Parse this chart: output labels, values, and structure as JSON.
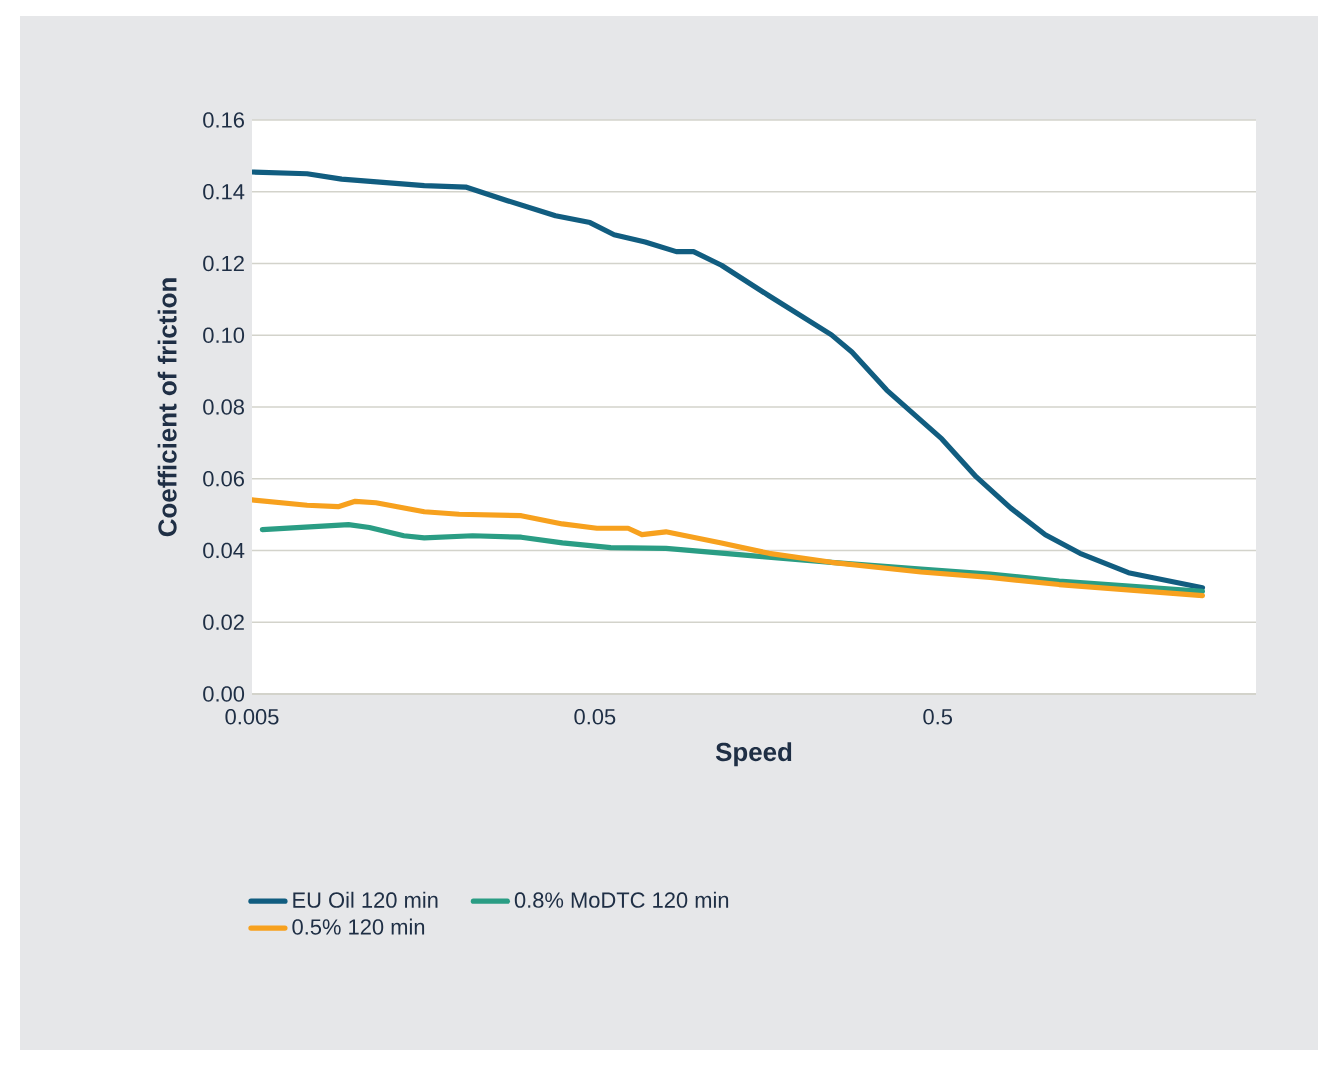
{
  "chart_data": {
    "type": "line",
    "xlabel": "Speed",
    "ylabel": "Coefficient of friction",
    "log": "x",
    "grid": "y",
    "legend": "bottom",
    "marker": "none",
    "line_style": "solid",
    "xlim": [
      0.005,
      4.24
    ],
    "xticks": [
      0.005,
      0.05,
      0.5
    ],
    "ylim": [
      0,
      0.16
    ],
    "yticks": [
      {
        "value": 0,
        "label": "0.00"
      },
      0.02,
      0.04,
      0.06,
      0.08,
      {
        "value": 0.1,
        "label": "0.10"
      },
      0.12,
      0.14,
      0.16
    ],
    "series": [
      {
        "name": "EU Oil 120 min",
        "color": "#115d80",
        "x": [
          0.005,
          0.00724,
          0.00913,
          0.0159,
          0.021,
          0.0278,
          0.0384,
          0.0484,
          0.0569,
          0.0701,
          0.0864,
          0.097,
          0.117,
          0.161,
          0.245,
          0.281,
          0.355,
          0.514,
          0.648,
          0.817,
          1.03,
          1.3,
          1.8,
          2.96
        ],
        "values": [
          0.1455,
          0.145,
          0.1435,
          0.1417,
          0.1413,
          0.1375,
          0.1333,
          0.1314,
          0.128,
          0.126,
          0.1233,
          0.1233,
          0.1195,
          0.111,
          0.1001,
          0.0953,
          0.0847,
          0.0711,
          0.0605,
          0.0518,
          0.0444,
          0.0392,
          0.0338,
          0.0296
        ]
      },
      {
        "name": "0.8% MoDTC 120 min",
        "color": "#2a9d84",
        "x": [
          0.00536,
          0.00956,
          0.011,
          0.01386,
          0.0159,
          0.022,
          0.0305,
          0.0402,
          0.0556,
          0.0806,
          0.154,
          0.245,
          0.447,
          0.711,
          1.13,
          2.96
        ],
        "values": [
          0.0458,
          0.0472,
          0.0464,
          0.0441,
          0.0435,
          0.0441,
          0.0437,
          0.0421,
          0.0408,
          0.0406,
          0.0383,
          0.0367,
          0.0348,
          0.0334,
          0.0315,
          0.0286
        ]
      },
      {
        "name": "0.5% 120 min",
        "color": "#f7a11e",
        "x": [
          0.005,
          0.00724,
          0.00892,
          0.01,
          0.0115,
          0.0159,
          0.0201,
          0.0305,
          0.0402,
          0.0507,
          0.0625,
          0.0686,
          0.0806,
          0.117,
          0.161,
          0.245,
          0.447,
          0.711,
          1.13,
          2.96
        ],
        "values": [
          0.0541,
          0.0526,
          0.0522,
          0.0537,
          0.0533,
          0.0508,
          0.0501,
          0.0497,
          0.0474,
          0.0462,
          0.0462,
          0.0444,
          0.0452,
          0.0421,
          0.0392,
          0.0367,
          0.034,
          0.0325,
          0.0305,
          0.0274
        ]
      }
    ]
  }
}
